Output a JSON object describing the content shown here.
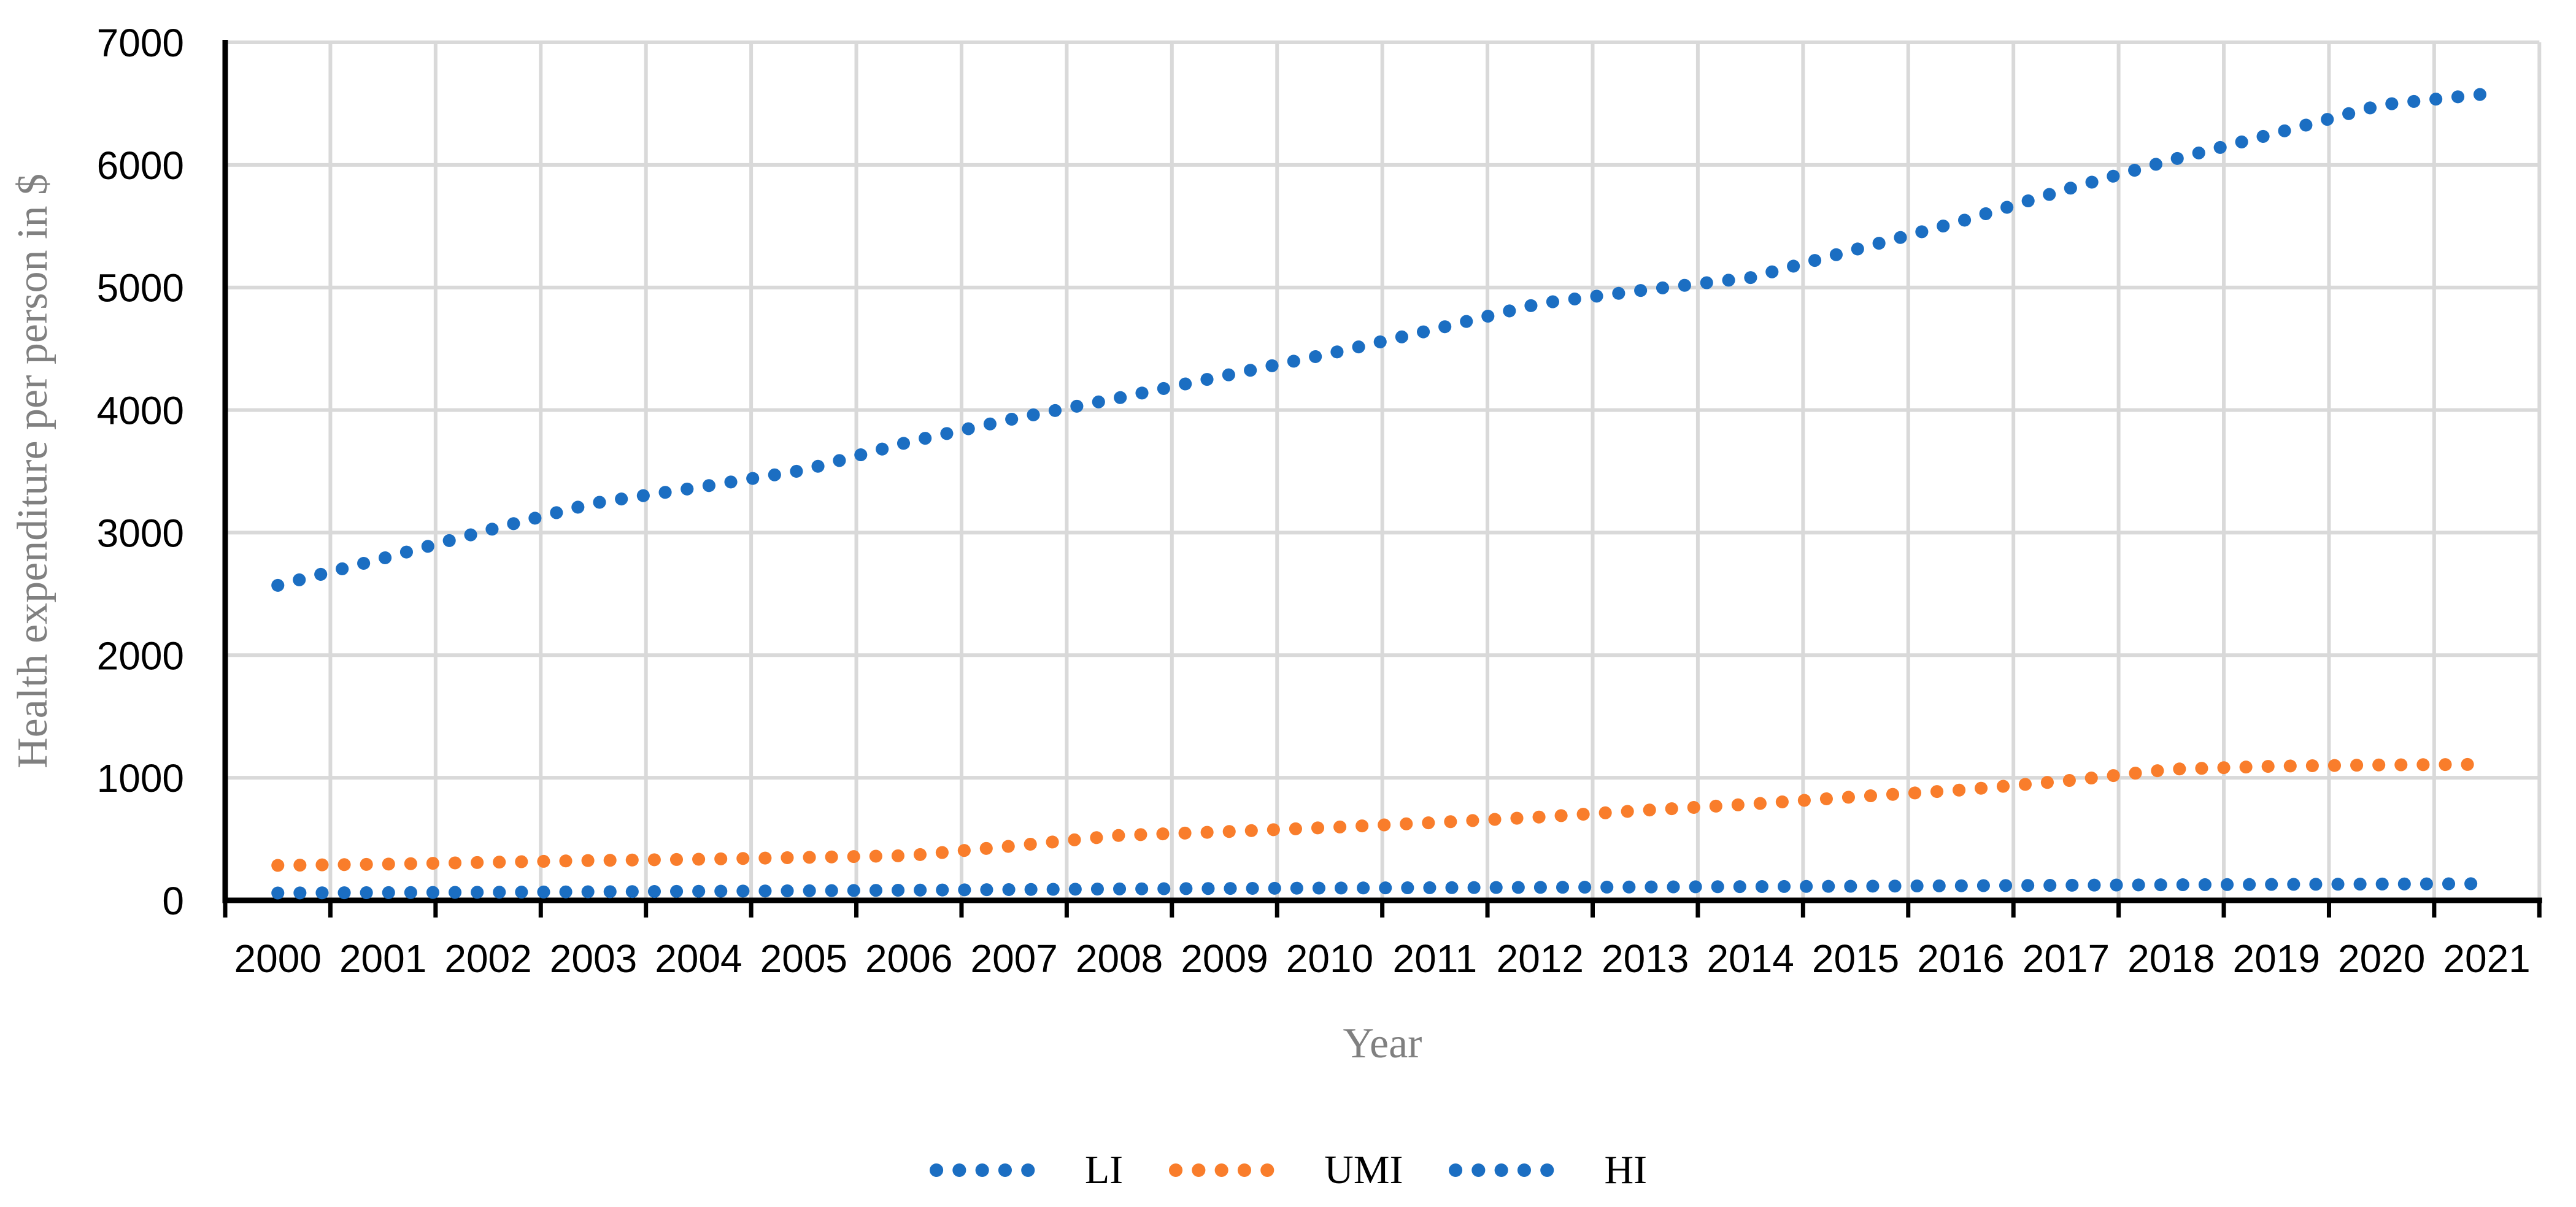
{
  "chart_data": {
    "type": "line",
    "line_style": "dotted",
    "title": "",
    "xlabel": "Year",
    "ylabel": "Health expenditure per person in $",
    "categories": [
      "2000",
      "2001",
      "2002",
      "2003",
      "2004",
      "2005",
      "2006",
      "2007",
      "2008",
      "2009",
      "2010",
      "2011",
      "2012",
      "2013",
      "2014",
      "2015",
      "2016",
      "2017",
      "2018",
      "2019",
      "2020",
      "2021"
    ],
    "yticks": [
      0,
      1000,
      2000,
      3000,
      4000,
      5000,
      6000,
      7000
    ],
    "ylim": [
      0,
      7000
    ],
    "grid": true,
    "legend_position": "bottom",
    "series": [
      {
        "name": "LI",
        "color": "#1B6EC2",
        "values": [
          60,
          63,
          66,
          70,
          74,
          78,
          83,
          88,
          93,
          97,
          100,
          103,
          106,
          109,
          112,
          115,
          119,
          123,
          127,
          130,
          133,
          136
        ]
      },
      {
        "name": "UMI",
        "color": "#F97D2B",
        "values": [
          285,
          295,
          310,
          325,
          335,
          350,
          365,
          445,
          530,
          560,
          595,
          635,
          680,
          735,
          785,
          845,
          900,
          975,
          1070,
          1095,
          1105,
          1110
        ]
      },
      {
        "name": "HI",
        "color": "#1B6EC2",
        "values": [
          2570,
          2790,
          3020,
          3240,
          3370,
          3510,
          3740,
          3930,
          4100,
          4280,
          4460,
          4660,
          4870,
          4980,
          5080,
          5310,
          5540,
          5800,
          6040,
          6260,
          6490,
          6580
        ]
      }
    ]
  },
  "colors": {
    "gridline": "#D9D9D9",
    "axis": "#000000",
    "tick_label": "#000000",
    "axis_title": "#808080",
    "legend_label": "#000000"
  }
}
